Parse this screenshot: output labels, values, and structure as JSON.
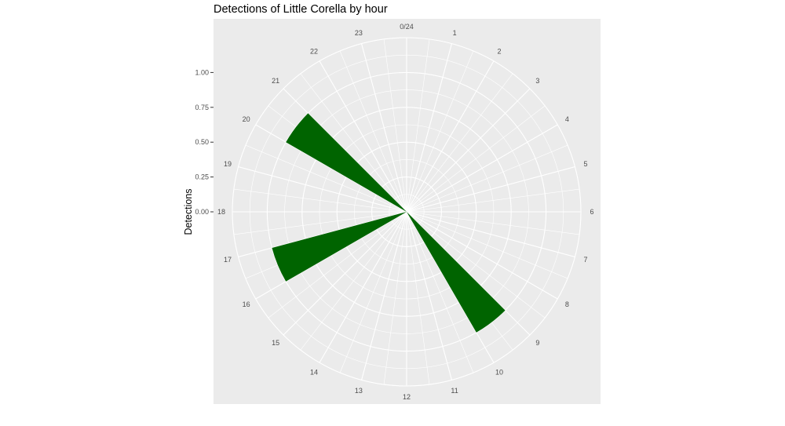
{
  "chart_data": {
    "type": "bar",
    "coord": "polar",
    "title": "Detections of Little Corella by hour",
    "ylabel": "Detections",
    "xlabel": "",
    "categories": [
      "0/24",
      "1",
      "2",
      "3",
      "4",
      "5",
      "6",
      "7",
      "8",
      "9",
      "10",
      "11",
      "12",
      "13",
      "14",
      "15",
      "16",
      "17",
      "18",
      "19",
      "20",
      "21",
      "22",
      "23"
    ],
    "bars": [
      {
        "start": 9.0,
        "end": 10.0,
        "value": 1.0
      },
      {
        "start": 16.0,
        "end": 17.0,
        "value": 1.0
      },
      {
        "start": 20.0,
        "end": 21.0,
        "value": 1.0
      }
    ],
    "yticks": [
      "0.00",
      "0.25",
      "0.50",
      "0.75",
      "1.00"
    ],
    "ylim": [
      0,
      1.25
    ],
    "grid": true,
    "legend": "none",
    "colors": {
      "bar": "#006400",
      "panel": "#ebebeb",
      "grid": "#ffffff"
    }
  }
}
